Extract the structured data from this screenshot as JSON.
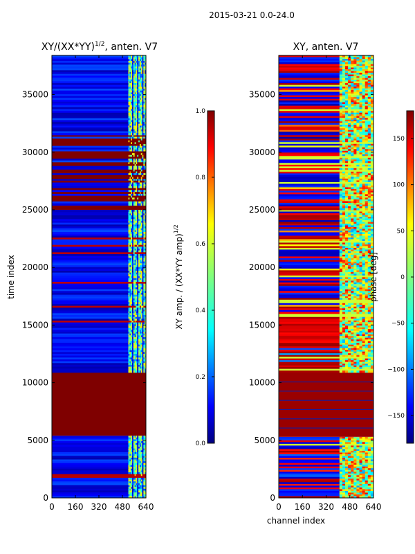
{
  "figure": {
    "suptitle": "2015-03-21 0.0-24.0"
  },
  "chart_data": [
    {
      "type": "heatmap",
      "title_main": "XY/(XX*YY)",
      "title_sup": "1/2",
      "title_tail": ", anten. V7",
      "xlabel": "",
      "ylabel": "time index",
      "xlim": [
        0,
        640
      ],
      "ylim": [
        0,
        38400
      ],
      "xticks": [
        "0",
        "160",
        "320",
        "480",
        "640"
      ],
      "yticks": [
        "0",
        "5000",
        "10000",
        "15000",
        "20000",
        "25000",
        "30000",
        "35000"
      ],
      "colorbar": {
        "label_main": "XY amp. / (XX*YY amp)",
        "label_sup": "1/2",
        "range": [
          0.0,
          1.0
        ],
        "ticks": [
          "0.0",
          "0.2",
          "0.4",
          "0.6",
          "0.8",
          "1.0"
        ]
      },
      "bands": [
        {
          "y0": 0,
          "y1": 5400,
          "base": "noisy-low"
        },
        {
          "y0": 5400,
          "y1": 10900,
          "base": "saturated"
        },
        {
          "y0": 10900,
          "y1": 25000,
          "base": "noisy-low"
        },
        {
          "y0": 25000,
          "y1": 25400,
          "base": "saturated"
        },
        {
          "y0": 25400,
          "y1": 27700,
          "base": "mixed"
        },
        {
          "y0": 27700,
          "y1": 31500,
          "base": "saturated-mixed"
        },
        {
          "y0": 31500,
          "y1": 38400,
          "base": "noisy-low"
        }
      ],
      "bright_channel_range": [
        520,
        640
      ]
    },
    {
      "type": "heatmap",
      "title": "XY, anten. V7",
      "xlabel": "channel index",
      "ylabel": "",
      "xlim": [
        0,
        640
      ],
      "ylim": [
        0,
        38400
      ],
      "xticks": [
        "0",
        "160",
        "320",
        "480",
        "640"
      ],
      "yticks": [
        "0",
        "5000",
        "10000",
        "15000",
        "20000",
        "25000",
        "30000",
        "35000"
      ],
      "colorbar": {
        "label": "phase [deg]",
        "range": [
          -180,
          180
        ],
        "ticks": [
          "−150",
          "−100",
          "−50",
          "0",
          "50",
          "100",
          "150"
        ]
      },
      "bands": [
        {
          "y0": 0,
          "y1": 5300,
          "base": "phase-noisy"
        },
        {
          "y0": 5300,
          "y1": 10900,
          "base": "phase-high"
        },
        {
          "y0": 10900,
          "y1": 16000,
          "base": "phase-red"
        },
        {
          "y0": 16000,
          "y1": 25000,
          "base": "phase-striped"
        },
        {
          "y0": 25000,
          "y1": 38400,
          "base": "phase-striped"
        }
      ],
      "bright_channel_range": [
        410,
        640
      ]
    }
  ]
}
